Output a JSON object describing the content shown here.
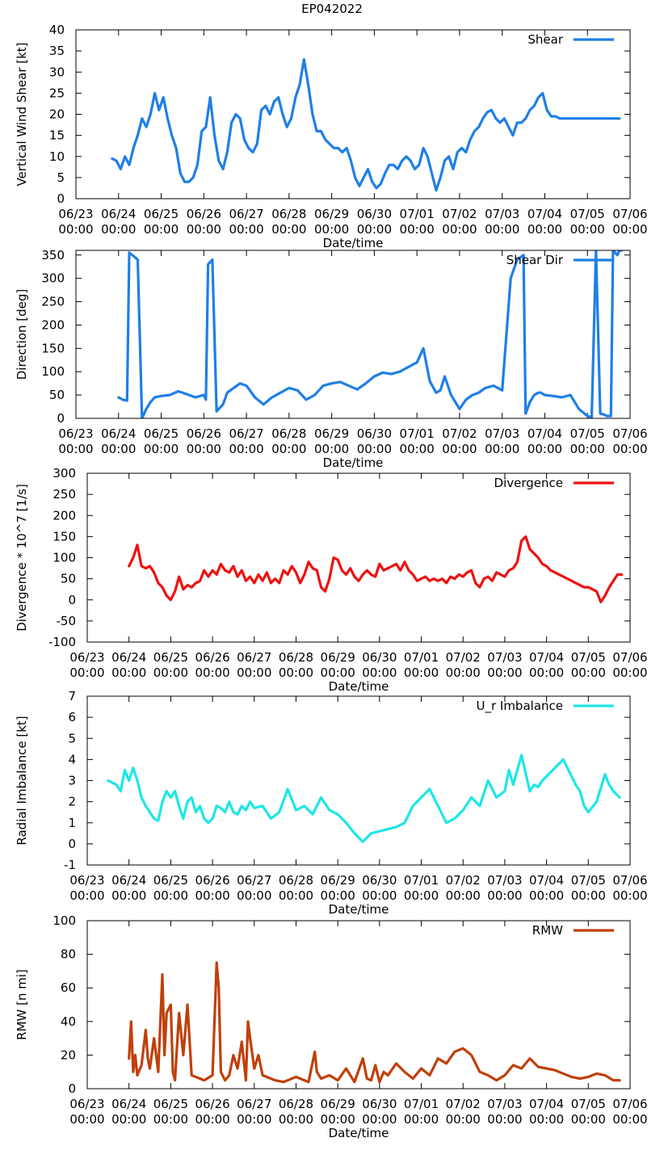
{
  "figure_title": "EP042022",
  "chart_data": [
    {
      "type": "line",
      "title": "EP042022",
      "xlabel": "Date/time",
      "ylabel": "Vertical Wind Shear [kt]",
      "legend": "Shear",
      "color": "#1f7fe6",
      "x_tick_dates": [
        "06/23",
        "06/24",
        "06/25",
        "06/26",
        "06/27",
        "06/28",
        "06/29",
        "06/30",
        "07/01",
        "07/02",
        "07/03",
        "07/04",
        "07/05",
        "07/06"
      ],
      "x_tick_times": [
        "00:00",
        "00:00",
        "00:00",
        "00:00",
        "00:00",
        "00:00",
        "00:00",
        "00:00",
        "00:00",
        "00:00",
        "00:00",
        "00:00",
        "00:00",
        "00:00"
      ],
      "xlim_days": [
        0,
        13
      ],
      "ylim": [
        0,
        40
      ],
      "yticks": [
        0,
        5,
        10,
        15,
        20,
        25,
        30,
        35,
        40
      ],
      "x": [
        0.85,
        0.95,
        1.05,
        1.15,
        1.25,
        1.35,
        1.45,
        1.55,
        1.65,
        1.75,
        1.85,
        1.95,
        2.05,
        2.15,
        2.25,
        2.35,
        2.45,
        2.55,
        2.65,
        2.75,
        2.85,
        2.95,
        3.05,
        3.15,
        3.25,
        3.35,
        3.45,
        3.55,
        3.65,
        3.75,
        3.85,
        3.95,
        4.05,
        4.15,
        4.25,
        4.35,
        4.45,
        4.55,
        4.65,
        4.75,
        4.85,
        4.95,
        5.05,
        5.15,
        5.25,
        5.35,
        5.45,
        5.55,
        5.65,
        5.75,
        5.85,
        5.95,
        6.05,
        6.15,
        6.25,
        6.35,
        6.45,
        6.55,
        6.65,
        6.75,
        6.85,
        6.95,
        7.05,
        7.15,
        7.25,
        7.35,
        7.45,
        7.55,
        7.65,
        7.75,
        7.85,
        7.95,
        8.05,
        8.15,
        8.25,
        8.35,
        8.45,
        8.55,
        8.65,
        8.75,
        8.85,
        8.95,
        9.05,
        9.15,
        9.25,
        9.35,
        9.45,
        9.55,
        9.65,
        9.75,
        9.85,
        9.95,
        10.05,
        10.15,
        10.25,
        10.35,
        10.45,
        10.55,
        10.65,
        10.75,
        10.85,
        10.95,
        11.05,
        11.15,
        11.25,
        11.35,
        11.45,
        11.55,
        11.65,
        11.75,
        11.85,
        11.95,
        12.05,
        12.15,
        12.25,
        12.35,
        12.45,
        12.55,
        12.65,
        12.75
      ],
      "y": [
        9.5,
        9,
        7,
        10,
        8,
        12,
        15,
        19,
        17,
        20,
        25,
        21,
        24,
        19,
        15,
        12,
        6,
        4,
        4,
        5,
        8,
        16,
        17,
        24,
        15,
        9,
        7,
        11,
        18,
        20,
        19,
        14,
        12,
        11,
        13,
        21,
        22,
        20,
        23,
        24,
        20,
        17,
        19,
        24,
        27,
        33,
        27,
        20,
        16,
        16,
        14,
        13,
        12,
        12,
        11,
        12,
        9,
        5,
        3,
        5,
        7,
        4,
        2.5,
        3.5,
        6,
        8,
        8,
        7,
        9,
        10,
        9,
        7,
        8,
        12,
        10,
        6,
        2,
        5,
        9,
        10,
        7,
        11,
        12,
        11,
        14,
        16,
        17,
        19,
        20.5,
        21,
        19,
        18,
        19,
        17,
        15,
        18,
        18,
        19,
        21,
        22,
        24,
        25,
        21,
        19.5,
        19.5,
        19,
        19,
        19,
        19,
        19,
        19,
        19,
        19,
        19,
        19,
        19,
        19,
        19,
        19,
        19
      ]
    },
    {
      "type": "line",
      "xlabel": "Date/time",
      "ylabel": "Direction [deg]",
      "legend": "Shear Dir",
      "color": "#1f7fe6",
      "x_tick_dates": [
        "06/23",
        "06/24",
        "06/25",
        "06/26",
        "06/27",
        "06/28",
        "06/29",
        "06/30",
        "07/01",
        "07/02",
        "07/03",
        "07/04",
        "07/05",
        "07/06"
      ],
      "x_tick_times": [
        "00:00",
        "00:00",
        "00:00",
        "00:00",
        "00:00",
        "00:00",
        "00:00",
        "00:00",
        "00:00",
        "00:00",
        "00:00",
        "00:00",
        "00:00",
        "00:00"
      ],
      "xlim_days": [
        0,
        13
      ],
      "ylim": [
        0,
        360
      ],
      "yticks": [
        0,
        50,
        100,
        150,
        200,
        250,
        300,
        350
      ],
      "x": [
        1.0,
        1.1,
        1.2,
        1.25,
        1.35,
        1.45,
        1.55,
        1.65,
        1.75,
        1.85,
        2.0,
        2.2,
        2.4,
        2.6,
        2.8,
        3.0,
        3.05,
        3.1,
        3.2,
        3.3,
        3.45,
        3.55,
        3.7,
        3.85,
        4.0,
        4.2,
        4.4,
        4.6,
        4.8,
        5.0,
        5.2,
        5.4,
        5.6,
        5.8,
        6.0,
        6.2,
        6.4,
        6.6,
        6.8,
        7.0,
        7.2,
        7.4,
        7.6,
        7.8,
        8.0,
        8.15,
        8.3,
        8.45,
        8.55,
        8.65,
        8.8,
        9.0,
        9.15,
        9.3,
        9.45,
        9.6,
        9.8,
        10.0,
        10.2,
        10.35,
        10.5,
        10.55,
        10.65,
        10.75,
        10.85,
        10.9,
        11.0,
        11.2,
        11.4,
        11.6,
        11.8,
        12.0,
        12.1,
        12.2,
        12.3,
        12.4,
        12.45,
        12.5,
        12.55,
        12.6,
        12.7,
        12.75,
        12.8
      ],
      "y": [
        45,
        40,
        38,
        355,
        348,
        340,
        0,
        20,
        35,
        45,
        48,
        50,
        58,
        52,
        45,
        50,
        40,
        330,
        340,
        15,
        30,
        55,
        65,
        75,
        70,
        45,
        30,
        45,
        55,
        65,
        60,
        40,
        50,
        70,
        75,
        78,
        70,
        62,
        75,
        90,
        98,
        95,
        100,
        110,
        120,
        150,
        80,
        55,
        60,
        90,
        50,
        20,
        40,
        50,
        55,
        65,
        70,
        60,
        300,
        340,
        350,
        10,
        35,
        50,
        55,
        55,
        50,
        48,
        45,
        50,
        20,
        5,
        2,
        360,
        10,
        8,
        5,
        5,
        5,
        360,
        350,
        360,
        360
      ]
    },
    {
      "type": "line",
      "xlabel": "Date/time",
      "ylabel": "Divergence * 10^7 [1/s]",
      "legend": "Divergence",
      "color": "#ee1111",
      "x_tick_dates": [
        "06/23",
        "06/24",
        "06/25",
        "06/26",
        "06/27",
        "06/28",
        "06/29",
        "06/30",
        "07/01",
        "07/02",
        "07/03",
        "07/04",
        "07/05",
        "07/06"
      ],
      "x_tick_times": [
        "00:00",
        "00:00",
        "00:00",
        "00:00",
        "00:00",
        "00:00",
        "00:00",
        "00:00",
        "00:00",
        "00:00",
        "00:00",
        "00:00",
        "00:00",
        "00:00"
      ],
      "xlim_days": [
        0,
        13
      ],
      "ylim": [
        -100,
        300
      ],
      "yticks": [
        -100,
        -50,
        0,
        50,
        100,
        150,
        200,
        250,
        300
      ],
      "x": [
        1.0,
        1.1,
        1.2,
        1.3,
        1.4,
        1.5,
        1.6,
        1.7,
        1.8,
        1.9,
        2.0,
        2.1,
        2.2,
        2.3,
        2.4,
        2.5,
        2.6,
        2.7,
        2.8,
        2.9,
        3.0,
        3.1,
        3.2,
        3.3,
        3.4,
        3.5,
        3.6,
        3.7,
        3.8,
        3.9,
        4.0,
        4.1,
        4.2,
        4.3,
        4.4,
        4.5,
        4.6,
        4.7,
        4.8,
        4.9,
        5.0,
        5.1,
        5.2,
        5.3,
        5.4,
        5.5,
        5.6,
        5.7,
        5.8,
        5.9,
        6.0,
        6.1,
        6.2,
        6.3,
        6.4,
        6.5,
        6.6,
        6.7,
        6.8,
        6.9,
        7.0,
        7.1,
        7.2,
        7.3,
        7.4,
        7.5,
        7.6,
        7.7,
        7.8,
        7.9,
        8.0,
        8.1,
        8.2,
        8.3,
        8.4,
        8.5,
        8.6,
        8.7,
        8.8,
        8.9,
        9.0,
        9.1,
        9.2,
        9.3,
        9.4,
        9.5,
        9.6,
        9.7,
        9.8,
        9.9,
        10.0,
        10.1,
        10.2,
        10.3,
        10.4,
        10.5,
        10.6,
        10.7,
        10.8,
        10.9,
        11.0,
        11.1,
        11.2,
        11.3,
        11.4,
        11.5,
        11.6,
        11.7,
        11.8,
        11.9,
        12.0,
        12.1,
        12.2,
        12.3,
        12.4,
        12.5,
        12.6,
        12.7,
        12.8
      ],
      "y": [
        80,
        100,
        130,
        80,
        75,
        80,
        65,
        40,
        30,
        10,
        0,
        20,
        55,
        25,
        35,
        30,
        40,
        45,
        70,
        55,
        70,
        60,
        85,
        70,
        65,
        80,
        55,
        70,
        45,
        55,
        40,
        60,
        45,
        65,
        40,
        50,
        40,
        70,
        60,
        80,
        65,
        40,
        60,
        90,
        75,
        70,
        30,
        20,
        50,
        100,
        95,
        70,
        60,
        75,
        55,
        45,
        60,
        70,
        60,
        55,
        85,
        70,
        75,
        80,
        85,
        70,
        90,
        70,
        60,
        45,
        50,
        55,
        45,
        50,
        45,
        50,
        40,
        55,
        50,
        60,
        55,
        65,
        70,
        40,
        30,
        50,
        55,
        45,
        65,
        60,
        55,
        70,
        75,
        90,
        140,
        150,
        120,
        110,
        100,
        85,
        80,
        70,
        65,
        60,
        55,
        50,
        45,
        40,
        35,
        30,
        30,
        25,
        20,
        -5,
        10,
        30,
        45,
        60,
        60
      ]
    },
    {
      "type": "line",
      "xlabel": "Date/time",
      "ylabel": "Radial Imbalance [kt]",
      "legend": "U_r Imbalance",
      "color": "#1ee6e6",
      "x_tick_dates": [
        "06/23",
        "06/24",
        "06/25",
        "06/26",
        "06/27",
        "06/28",
        "06/29",
        "06/30",
        "07/01",
        "07/02",
        "07/03",
        "07/04",
        "07/05",
        "07/06"
      ],
      "x_tick_times": [
        "00:00",
        "00:00",
        "00:00",
        "00:00",
        "00:00",
        "00:00",
        "00:00",
        "00:00",
        "00:00",
        "00:00",
        "00:00",
        "00:00",
        "00:00",
        "00:00"
      ],
      "xlim_days": [
        0,
        13
      ],
      "ylim": [
        -1,
        7
      ],
      "yticks": [
        -1,
        0,
        1,
        2,
        3,
        4,
        5,
        6,
        7
      ],
      "x": [
        0.5,
        0.7,
        0.8,
        0.9,
        1.0,
        1.1,
        1.2,
        1.3,
        1.4,
        1.5,
        1.6,
        1.7,
        1.8,
        1.9,
        2.0,
        2.1,
        2.2,
        2.3,
        2.4,
        2.5,
        2.6,
        2.7,
        2.8,
        2.9,
        3.0,
        3.1,
        3.2,
        3.3,
        3.4,
        3.5,
        3.6,
        3.7,
        3.8,
        3.9,
        4.0,
        4.2,
        4.4,
        4.6,
        4.8,
        5.0,
        5.2,
        5.4,
        5.6,
        5.8,
        6.0,
        6.2,
        6.4,
        6.6,
        6.8,
        7.0,
        7.2,
        7.4,
        7.6,
        7.8,
        8.0,
        8.2,
        8.4,
        8.6,
        8.8,
        9.0,
        9.2,
        9.4,
        9.6,
        9.8,
        10.0,
        10.1,
        10.2,
        10.4,
        10.6,
        10.7,
        10.8,
        10.9,
        11.0,
        11.2,
        11.4,
        11.6,
        11.7,
        11.8,
        11.9,
        12.0,
        12.2,
        12.4,
        12.5,
        12.6,
        12.75
      ],
      "y": [
        3.0,
        2.8,
        2.5,
        3.5,
        3.0,
        3.6,
        3.0,
        2.2,
        1.8,
        1.5,
        1.2,
        1.1,
        2.0,
        2.5,
        2.2,
        2.5,
        1.8,
        1.2,
        2.0,
        2.2,
        1.5,
        1.8,
        1.2,
        1.0,
        1.2,
        1.8,
        1.7,
        1.5,
        2.0,
        1.5,
        1.4,
        1.8,
        1.6,
        2.0,
        1.7,
        1.8,
        1.2,
        1.5,
        2.6,
        1.6,
        1.8,
        1.4,
        2.2,
        1.6,
        1.4,
        1.0,
        0.5,
        0.1,
        0.5,
        0.6,
        0.7,
        0.8,
        1.0,
        1.8,
        2.2,
        2.6,
        1.8,
        1.0,
        1.2,
        1.6,
        2.2,
        1.8,
        3.0,
        2.2,
        2.5,
        3.5,
        2.8,
        4.2,
        2.5,
        2.8,
        2.7,
        3.0,
        3.2,
        3.6,
        4.0,
        3.2,
        2.8,
        2.5,
        1.8,
        1.5,
        2.0,
        3.3,
        2.8,
        2.5,
        2.2
      ]
    },
    {
      "type": "line",
      "xlabel": "Date/time",
      "ylabel": "RMW [n mi]",
      "legend": "RMW",
      "color": "#c0400a",
      "x_tick_dates": [
        "06/23",
        "06/24",
        "06/25",
        "06/26",
        "06/27",
        "06/28",
        "06/29",
        "06/30",
        "07/01",
        "07/02",
        "07/03",
        "07/04",
        "07/05",
        "07/06"
      ],
      "x_tick_times": [
        "00:00",
        "00:00",
        "00:00",
        "00:00",
        "00:00",
        "00:00",
        "00:00",
        "00:00",
        "00:00",
        "00:00",
        "00:00",
        "00:00",
        "00:00",
        "00:00"
      ],
      "xlim_days": [
        0,
        13
      ],
      "ylim": [
        0,
        100
      ],
      "yticks": [
        0,
        20,
        40,
        60,
        80,
        100
      ],
      "x": [
        1.0,
        1.05,
        1.1,
        1.15,
        1.2,
        1.3,
        1.4,
        1.45,
        1.5,
        1.6,
        1.7,
        1.8,
        1.85,
        1.9,
        2.0,
        2.05,
        2.1,
        2.2,
        2.3,
        2.4,
        2.5,
        2.6,
        2.7,
        2.8,
        3.0,
        3.1,
        3.15,
        3.2,
        3.3,
        3.4,
        3.5,
        3.6,
        3.7,
        3.8,
        3.85,
        3.9,
        4.0,
        4.1,
        4.2,
        4.3,
        4.5,
        4.7,
        5.0,
        5.2,
        5.3,
        5.45,
        5.5,
        5.6,
        5.8,
        6.0,
        6.2,
        6.4,
        6.6,
        6.7,
        6.8,
        6.9,
        7.0,
        7.1,
        7.2,
        7.4,
        7.6,
        7.8,
        8.0,
        8.2,
        8.4,
        8.6,
        8.8,
        9.0,
        9.2,
        9.4,
        9.6,
        9.8,
        10.0,
        10.2,
        10.4,
        10.6,
        10.8,
        11.0,
        11.2,
        11.4,
        11.6,
        11.8,
        12.0,
        12.2,
        12.4,
        12.6,
        12.75
      ],
      "y": [
        18,
        40,
        10,
        20,
        8,
        14,
        35,
        18,
        12,
        30,
        10,
        68,
        20,
        45,
        50,
        10,
        5,
        45,
        20,
        50,
        8,
        7,
        6,
        5,
        8,
        75,
        60,
        10,
        5,
        8,
        20,
        12,
        28,
        5,
        40,
        30,
        12,
        20,
        8,
        7,
        5,
        4,
        7,
        5,
        4,
        22,
        10,
        6,
        8,
        5,
        12,
        4,
        18,
        6,
        5,
        14,
        4,
        10,
        8,
        15,
        10,
        6,
        12,
        8,
        18,
        15,
        22,
        24,
        20,
        10,
        8,
        5,
        8,
        14,
        12,
        18,
        13,
        12,
        11,
        9,
        7,
        6,
        7,
        9,
        8,
        5,
        5
      ]
    }
  ]
}
